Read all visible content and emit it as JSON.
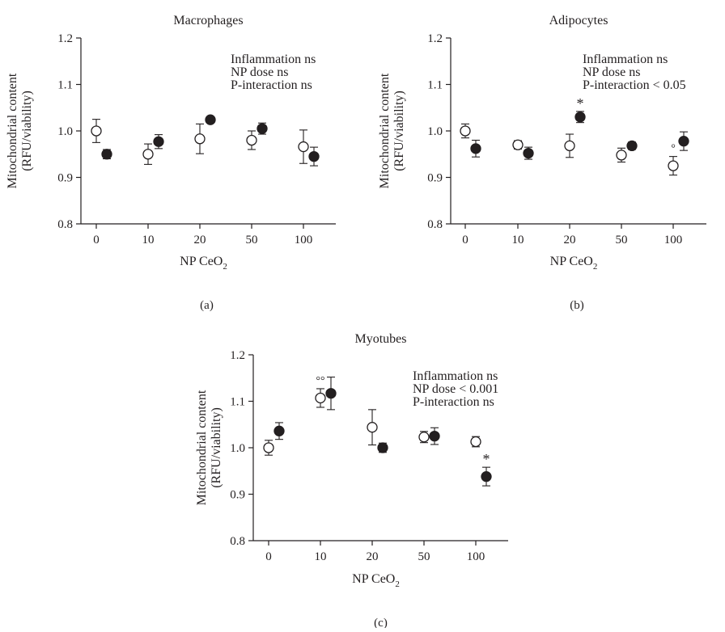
{
  "chart_data": [
    {
      "type": "scatter",
      "panel_label": "(a)",
      "title": "Macrophages",
      "xlabel": "NP CeO",
      "xlabel_sub": "2",
      "ylabel_lines": [
        "Mitochondrial content",
        "(RFU/viability)"
      ],
      "categories": [
        "0",
        "10",
        "20",
        "50",
        "100"
      ],
      "ylim": [
        0.8,
        1.2
      ],
      "yticks": [
        "0.8",
        "0.9",
        "1.0",
        "1.1",
        "1.2"
      ],
      "grid": false,
      "annotations": [
        "Inflammation ns",
        "NP dose ns",
        "P-interaction ns"
      ],
      "series": [
        {
          "marker": "open",
          "values": [
            1.0,
            0.95,
            0.983,
            0.98,
            0.966
          ],
          "errors": [
            0.025,
            0.022,
            0.032,
            0.02,
            0.036
          ],
          "marks": [
            "",
            "",
            "",
            "",
            ""
          ]
        },
        {
          "marker": "filled",
          "values": [
            0.95,
            0.977,
            1.024,
            1.005,
            0.945
          ],
          "errors": [
            0.01,
            0.015,
            0.004,
            0.012,
            0.02
          ],
          "marks": [
            "",
            "",
            "",
            "",
            ""
          ]
        }
      ]
    },
    {
      "type": "scatter",
      "panel_label": "(b)",
      "title": "Adipocytes",
      "xlabel": "NP CeO",
      "xlabel_sub": "2",
      "ylabel_lines": [
        "Mitochondrial content",
        "(RFU/viability)"
      ],
      "categories": [
        "0",
        "10",
        "20",
        "50",
        "100"
      ],
      "ylim": [
        0.8,
        1.2
      ],
      "yticks": [
        "0.8",
        "0.9",
        "1.0",
        "1.1",
        "1.2"
      ],
      "grid": false,
      "annotations": [
        "Inflammation ns",
        "NP dose ns",
        "P-interaction < 0.05"
      ],
      "series": [
        {
          "marker": "open",
          "values": [
            1.0,
            0.97,
            0.968,
            0.948,
            0.925
          ],
          "errors": [
            0.015,
            0.009,
            0.025,
            0.015,
            0.02
          ],
          "marks": [
            "",
            "",
            "",
            "",
            "°"
          ]
        },
        {
          "marker": "filled",
          "values": [
            0.962,
            0.952,
            1.03,
            0.968,
            0.978
          ],
          "errors": [
            0.018,
            0.013,
            0.012,
            0.008,
            0.02
          ],
          "marks": [
            "",
            "",
            "*",
            "",
            ""
          ]
        }
      ]
    },
    {
      "type": "scatter",
      "panel_label": "(c)",
      "title": "Myotubes",
      "xlabel": "NP CeO",
      "xlabel_sub": "2",
      "ylabel_lines": [
        "Mitochondrial content",
        "(RFU/viability)"
      ],
      "categories": [
        "0",
        "10",
        "20",
        "50",
        "100"
      ],
      "ylim": [
        0.8,
        1.2
      ],
      "yticks": [
        "0.8",
        "0.9",
        "1.0",
        "1.1",
        "1.2"
      ],
      "grid": false,
      "annotations": [
        "Inflammation ns",
        "NP dose < 0.001",
        "P-interaction ns"
      ],
      "series": [
        {
          "marker": "open",
          "values": [
            1.0,
            1.107,
            1.044,
            1.023,
            1.013
          ],
          "errors": [
            0.016,
            0.02,
            0.038,
            0.012,
            0.011
          ],
          "marks": [
            "",
            "°°",
            "",
            "",
            ""
          ]
        },
        {
          "marker": "filled",
          "values": [
            1.036,
            1.117,
            1.0,
            1.025,
            0.938
          ],
          "errors": [
            0.018,
            0.035,
            0.01,
            0.018,
            0.02
          ],
          "marks": [
            "",
            "",
            "",
            "",
            "*"
          ]
        }
      ]
    }
  ]
}
